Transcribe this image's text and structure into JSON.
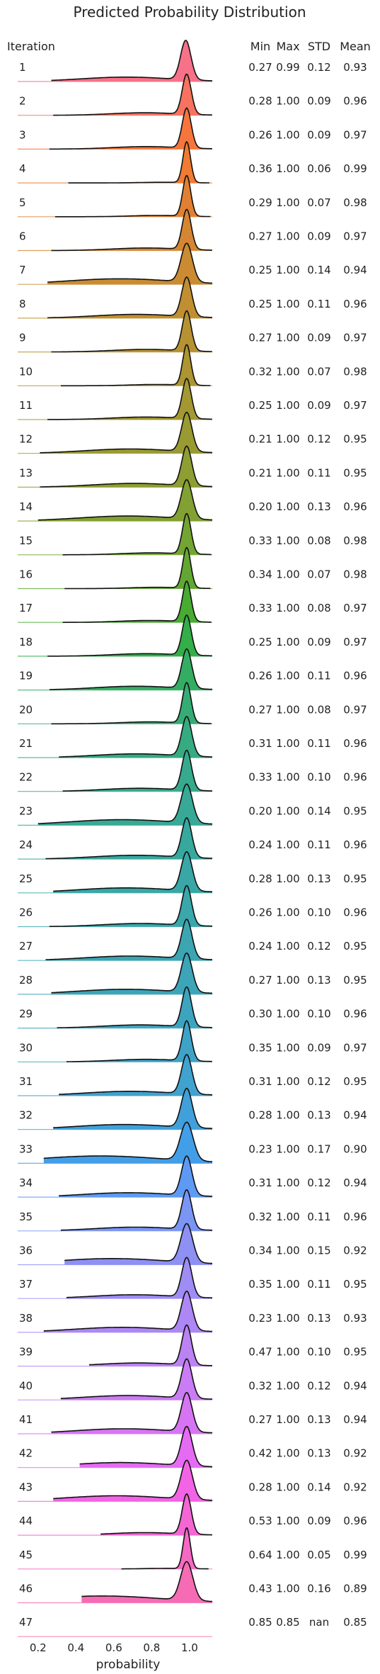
{
  "chart_data": {
    "type": "ridgeline",
    "title": "Predicted Probability Distribution",
    "xlabel": "probability",
    "xlim": [
      0.1,
      1.12
    ],
    "xticks": [
      0.2,
      0.4,
      0.6,
      0.8,
      1.0
    ],
    "xtick_labels": [
      "0.2",
      "0.4",
      "0.6",
      "0.8",
      "1.0"
    ],
    "row_header": "Iteration",
    "stat_headers": [
      "Min",
      "Max",
      "STD",
      "Mean"
    ],
    "series": [
      {
        "iteration": "1",
        "min": 0.27,
        "max": 0.99,
        "std": 0.12,
        "mean": 0.93,
        "color": "#f77189"
      },
      {
        "iteration": "2",
        "min": 0.28,
        "max": 1.0,
        "std": 0.09,
        "mean": 0.96,
        "color": "#f7725f"
      },
      {
        "iteration": "3",
        "min": 0.26,
        "max": 1.0,
        "std": 0.09,
        "mean": 0.97,
        "color": "#f5753c"
      },
      {
        "iteration": "4",
        "min": 0.36,
        "max": 1.0,
        "std": 0.06,
        "mean": 0.99,
        "color": "#f07b32"
      },
      {
        "iteration": "5",
        "min": 0.29,
        "max": 1.0,
        "std": 0.07,
        "mean": 0.98,
        "color": "#e18032"
      },
      {
        "iteration": "6",
        "min": 0.27,
        "max": 1.0,
        "std": 0.09,
        "mean": 0.97,
        "color": "#d58632"
      },
      {
        "iteration": "7",
        "min": 0.25,
        "max": 1.0,
        "std": 0.14,
        "mean": 0.94,
        "color": "#cb8b32"
      },
      {
        "iteration": "8",
        "min": 0.25,
        "max": 1.0,
        "std": 0.11,
        "mean": 0.96,
        "color": "#c18f32"
      },
      {
        "iteration": "9",
        "min": 0.27,
        "max": 1.0,
        "std": 0.09,
        "mean": 0.97,
        "color": "#b79232"
      },
      {
        "iteration": "10",
        "min": 0.32,
        "max": 1.0,
        "std": 0.07,
        "mean": 0.98,
        "color": "#ad9532"
      },
      {
        "iteration": "11",
        "min": 0.25,
        "max": 1.0,
        "std": 0.09,
        "mean": 0.97,
        "color": "#a39832"
      },
      {
        "iteration": "12",
        "min": 0.21,
        "max": 1.0,
        "std": 0.12,
        "mean": 0.95,
        "color": "#999b32"
      },
      {
        "iteration": "13",
        "min": 0.21,
        "max": 1.0,
        "std": 0.11,
        "mean": 0.95,
        "color": "#8e9e32"
      },
      {
        "iteration": "14",
        "min": 0.2,
        "max": 1.0,
        "std": 0.13,
        "mean": 0.96,
        "color": "#82a132"
      },
      {
        "iteration": "15",
        "min": 0.33,
        "max": 1.0,
        "std": 0.08,
        "mean": 0.98,
        "color": "#74a432"
      },
      {
        "iteration": "16",
        "min": 0.34,
        "max": 1.0,
        "std": 0.07,
        "mean": 0.98,
        "color": "#62a732"
      },
      {
        "iteration": "17",
        "min": 0.33,
        "max": 1.0,
        "std": 0.08,
        "mean": 0.97,
        "color": "#48ab32"
      },
      {
        "iteration": "18",
        "min": 0.25,
        "max": 1.0,
        "std": 0.09,
        "mean": 0.97,
        "color": "#33ae48"
      },
      {
        "iteration": "19",
        "min": 0.26,
        "max": 1.0,
        "std": 0.11,
        "mean": 0.96,
        "color": "#34ad62"
      },
      {
        "iteration": "20",
        "min": 0.27,
        "max": 1.0,
        "std": 0.08,
        "mean": 0.97,
        "color": "#35ac74"
      },
      {
        "iteration": "21",
        "min": 0.31,
        "max": 1.0,
        "std": 0.11,
        "mean": 0.96,
        "color": "#36ab82"
      },
      {
        "iteration": "22",
        "min": 0.33,
        "max": 1.0,
        "std": 0.1,
        "mean": 0.96,
        "color": "#37aa8d"
      },
      {
        "iteration": "23",
        "min": 0.2,
        "max": 1.0,
        "std": 0.14,
        "mean": 0.95,
        "color": "#38a996"
      },
      {
        "iteration": "24",
        "min": 0.24,
        "max": 1.0,
        "std": 0.11,
        "mean": 0.96,
        "color": "#38a89e"
      },
      {
        "iteration": "25",
        "min": 0.28,
        "max": 1.0,
        "std": 0.13,
        "mean": 0.95,
        "color": "#39a7a5"
      },
      {
        "iteration": "26",
        "min": 0.26,
        "max": 1.0,
        "std": 0.1,
        "mean": 0.96,
        "color": "#3aa7ab"
      },
      {
        "iteration": "27",
        "min": 0.24,
        "max": 1.0,
        "std": 0.12,
        "mean": 0.95,
        "color": "#3ba6b2"
      },
      {
        "iteration": "28",
        "min": 0.27,
        "max": 1.0,
        "std": 0.13,
        "mean": 0.95,
        "color": "#3ca5b8"
      },
      {
        "iteration": "29",
        "min": 0.3,
        "max": 1.0,
        "std": 0.1,
        "mean": 0.96,
        "color": "#3da4bf"
      },
      {
        "iteration": "30",
        "min": 0.35,
        "max": 1.0,
        "std": 0.09,
        "mean": 0.97,
        "color": "#3ea3c6"
      },
      {
        "iteration": "31",
        "min": 0.31,
        "max": 1.0,
        "std": 0.12,
        "mean": 0.95,
        "color": "#40a2cf"
      },
      {
        "iteration": "32",
        "min": 0.28,
        "max": 1.0,
        "std": 0.13,
        "mean": 0.94,
        "color": "#41a0da"
      },
      {
        "iteration": "33",
        "min": 0.23,
        "max": 1.0,
        "std": 0.17,
        "mean": 0.9,
        "color": "#439ee8"
      },
      {
        "iteration": "34",
        "min": 0.31,
        "max": 1.0,
        "std": 0.12,
        "mean": 0.94,
        "color": "#5e9af4"
      },
      {
        "iteration": "35",
        "min": 0.32,
        "max": 1.0,
        "std": 0.11,
        "mean": 0.96,
        "color": "#7a95f4"
      },
      {
        "iteration": "36",
        "min": 0.34,
        "max": 1.0,
        "std": 0.15,
        "mean": 0.92,
        "color": "#8e90f4"
      },
      {
        "iteration": "37",
        "min": 0.35,
        "max": 1.0,
        "std": 0.11,
        "mean": 0.95,
        "color": "#9f8cf4"
      },
      {
        "iteration": "38",
        "min": 0.23,
        "max": 1.0,
        "std": 0.13,
        "mean": 0.93,
        "color": "#ad87f4"
      },
      {
        "iteration": "39",
        "min": 0.47,
        "max": 1.0,
        "std": 0.1,
        "mean": 0.95,
        "color": "#bb82f4"
      },
      {
        "iteration": "40",
        "min": 0.32,
        "max": 1.0,
        "std": 0.12,
        "mean": 0.94,
        "color": "#c97cf4"
      },
      {
        "iteration": "41",
        "min": 0.27,
        "max": 1.0,
        "std": 0.13,
        "mean": 0.94,
        "color": "#d774f4"
      },
      {
        "iteration": "42",
        "min": 0.42,
        "max": 1.0,
        "std": 0.13,
        "mean": 0.92,
        "color": "#e66bf4"
      },
      {
        "iteration": "43",
        "min": 0.28,
        "max": 1.0,
        "std": 0.14,
        "mean": 0.92,
        "color": "#f263e6"
      },
      {
        "iteration": "44",
        "min": 0.53,
        "max": 1.0,
        "std": 0.09,
        "mean": 0.96,
        "color": "#f466d3"
      },
      {
        "iteration": "45",
        "min": 0.64,
        "max": 1.0,
        "std": 0.05,
        "mean": 0.99,
        "color": "#f569c3"
      },
      {
        "iteration": "46",
        "min": 0.43,
        "max": 1.0,
        "std": 0.16,
        "mean": 0.89,
        "color": "#f56cb4"
      },
      {
        "iteration": "47",
        "min": 0.85,
        "max": 0.85,
        "std": "nan",
        "mean": 0.85,
        "color": "#f66fa6"
      }
    ]
  }
}
